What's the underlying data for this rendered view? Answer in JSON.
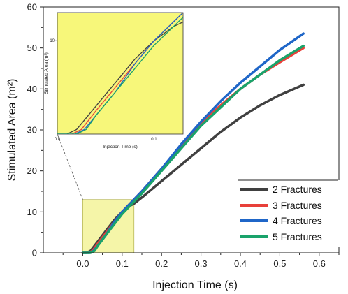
{
  "chart_data": {
    "type": "line",
    "xlabel": "Injection Time (s)",
    "ylabel": "Stimulated Area (m²)",
    "xlim": [
      -0.1,
      0.65
    ],
    "ylim": [
      0,
      60
    ],
    "x_ticks": [
      0.0,
      0.1,
      0.2,
      0.3,
      0.4,
      0.5,
      0.6
    ],
    "x_tick_labels": [
      "0.0",
      "0.1",
      "0.2",
      "0.3",
      "0.4",
      "0.5",
      "0.6"
    ],
    "y_ticks": [
      0,
      10,
      20,
      30,
      40,
      50,
      60
    ],
    "y_tick_labels": [
      "0",
      "10",
      "20",
      "30",
      "40",
      "50",
      "60"
    ],
    "legend_position": "bottom-right",
    "grid": false,
    "highlight_region": {
      "x": [
        0.0,
        0.13
      ],
      "y": [
        0,
        13
      ],
      "color": "#f5f5a8"
    },
    "series": [
      {
        "name": "2 Fractures",
        "color": "#404040",
        "x": [
          0.0,
          0.01,
          0.02,
          0.04,
          0.06,
          0.08,
          0.1,
          0.12,
          0.13,
          0.15,
          0.2,
          0.25,
          0.3,
          0.35,
          0.4,
          0.45,
          0.5,
          0.56
        ],
        "y": [
          0,
          0,
          0.5,
          3.0,
          5.5,
          8.0,
          10.0,
          11.5,
          12.0,
          13.5,
          17.5,
          21.5,
          25.5,
          29.5,
          33.0,
          36.0,
          38.5,
          41.0
        ]
      },
      {
        "name": "3 Fractures",
        "color": "#e8403a",
        "x": [
          0.0,
          0.015,
          0.025,
          0.04,
          0.06,
          0.08,
          0.1,
          0.12,
          0.13,
          0.15,
          0.2,
          0.25,
          0.3,
          0.35,
          0.4,
          0.45,
          0.5,
          0.56
        ],
        "y": [
          0,
          0,
          0.5,
          2.5,
          5.0,
          7.5,
          10.0,
          12.0,
          13.0,
          15.0,
          20.5,
          26.0,
          31.5,
          36.0,
          40.0,
          43.5,
          46.5,
          50.0
        ]
      },
      {
        "name": "4 Fractures",
        "color": "#1f66c8",
        "x": [
          0.0,
          0.018,
          0.028,
          0.04,
          0.06,
          0.08,
          0.1,
          0.12,
          0.13,
          0.15,
          0.2,
          0.25,
          0.3,
          0.35,
          0.4,
          0.45,
          0.5,
          0.56
        ],
        "y": [
          0,
          0,
          0.5,
          2.0,
          4.5,
          7.5,
          10.0,
          12.0,
          13.0,
          15.0,
          20.5,
          26.5,
          32.0,
          37.0,
          41.5,
          45.5,
          49.5,
          53.5
        ]
      },
      {
        "name": "5 Fractures",
        "color": "#1aa36b",
        "x": [
          0.0,
          0.02,
          0.03,
          0.04,
          0.06,
          0.08,
          0.1,
          0.12,
          0.13,
          0.15,
          0.2,
          0.25,
          0.3,
          0.35,
          0.4,
          0.45,
          0.5,
          0.56
        ],
        "y": [
          0,
          0,
          0.5,
          2.0,
          4.5,
          7.0,
          9.5,
          11.5,
          12.5,
          14.5,
          20.0,
          25.5,
          31.0,
          35.5,
          40.0,
          43.5,
          47.0,
          50.5
        ]
      }
    ],
    "inset": {
      "xlabel": "Injection Time (s)",
      "ylabel": "Stimulated Area (m²)",
      "xlim": [
        0.0,
        0.13
      ],
      "ylim": [
        0,
        13
      ],
      "x_ticks": [
        0.0,
        0.1
      ],
      "x_tick_labels": [
        "0.0",
        "0.1"
      ],
      "y_ticks": [
        10
      ],
      "y_tick_labels": [
        "10"
      ],
      "background": "#f7f77a"
    }
  }
}
